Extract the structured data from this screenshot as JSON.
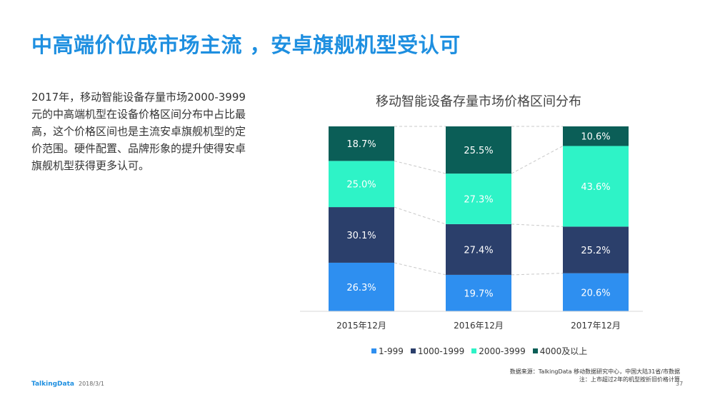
{
  "slide": {
    "title": "中高端价位成市场主流 ，安卓旗舰机型受认可",
    "body": "2017年，移动智能设备存量市场2000-3999元的中高端机型在设备价格区间分布中占比最高，这个价格区间也是主流安卓旗舰机型的定价范围。硬件配置、品牌形象的提升使得安卓旗舰机型获得更多认可。",
    "source_line1": "数据来源：TalkingData 移动数据研究中心，中国大陆31省/市数据",
    "source_line2": "注：上市超过2年的机型按折旧价格计算",
    "brand": "TalkingData",
    "date": "2018/3/1",
    "page_number": "37"
  },
  "chart_data": {
    "type": "bar",
    "stacked": true,
    "normalized": true,
    "title": "移动智能设备存量市场价格区间分布",
    "categories": [
      "2015年12月",
      "2016年12月",
      "2017年12月"
    ],
    "series": [
      {
        "name": "1-999",
        "color": "#2e8ff0",
        "values": [
          26.3,
          19.7,
          20.6
        ],
        "labels": [
          "26.3%",
          "19.7%",
          "20.6%"
        ]
      },
      {
        "name": "1000-1999",
        "color": "#2b3f6b",
        "values": [
          30.1,
          27.4,
          25.2
        ],
        "labels": [
          "30.1%",
          "27.4%",
          "25.2%"
        ]
      },
      {
        "name": "2000-3999",
        "color": "#2ef3c7",
        "values": [
          25.0,
          27.3,
          43.6
        ],
        "labels": [
          "25.0%",
          "27.3%",
          "43.6%"
        ]
      },
      {
        "name": "4000及以上",
        "color": "#0b5e57",
        "values": [
          18.7,
          25.5,
          10.6
        ],
        "labels": [
          "18.7%",
          "25.5%",
          "10.6%"
        ]
      }
    ],
    "legend_position": "bottom",
    "connector_lines": "dashed",
    "grid": false
  }
}
